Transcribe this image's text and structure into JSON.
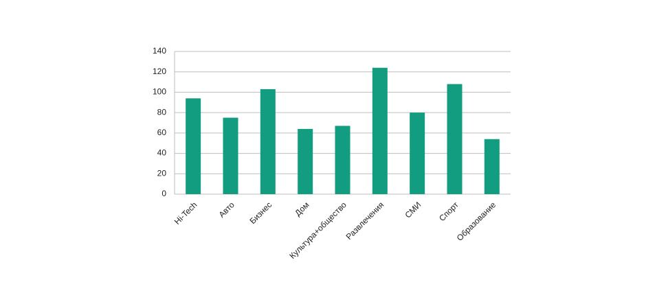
{
  "chart_data": {
    "type": "bar",
    "categories": [
      "Hi-Tech",
      "Авто",
      "Бизнес",
      "Дом",
      "Культура+общество",
      "Развлечения",
      "СМИ",
      "Спорт",
      "Образование"
    ],
    "values": [
      94,
      75,
      103,
      64,
      67,
      124,
      80,
      108,
      54
    ],
    "color": "#129c80",
    "ylim": [
      0,
      140
    ],
    "yticks": [
      0,
      20,
      40,
      60,
      80,
      100,
      120,
      140
    ],
    "grid": true
  }
}
